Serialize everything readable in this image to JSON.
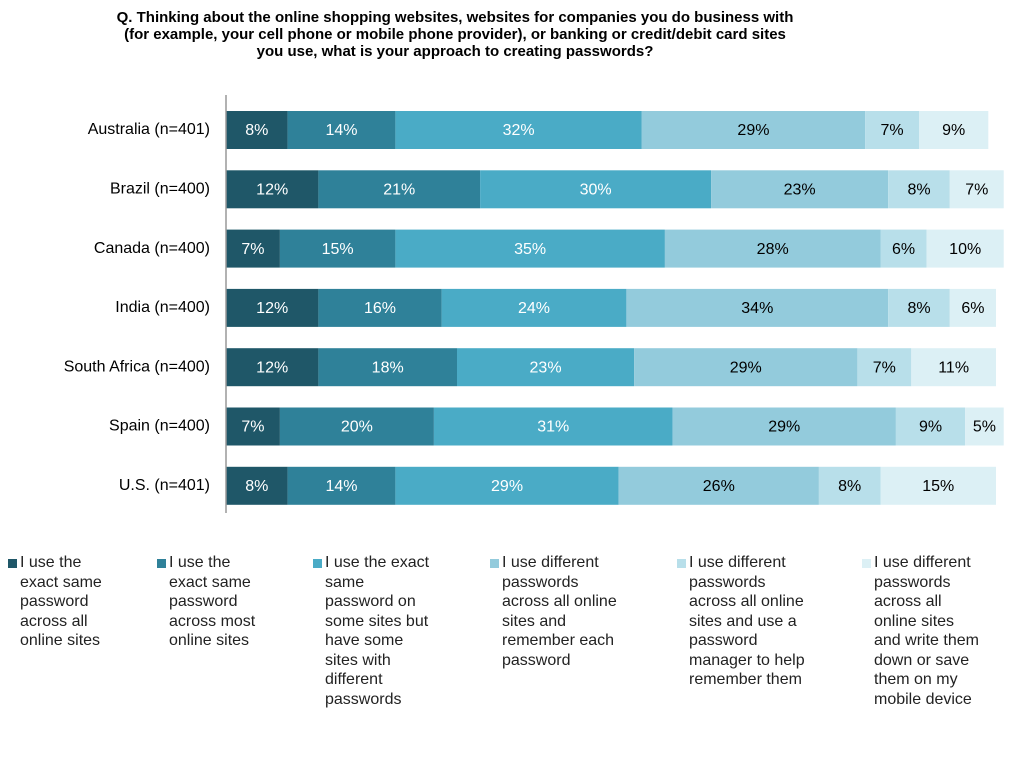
{
  "chart_data": {
    "type": "stacked-bar-horizontal",
    "title": "Q. Thinking about the online shopping websites, websites for companies you do business with (for example, your cell phone or mobile phone provider), or banking or credit/debit card sites you use, what is your approach to creating passwords?",
    "categories": [
      "Australia (n=401)",
      "Brazil (n=400)",
      "Canada (n=400)",
      "India (n=400)",
      "South Africa (n=400)",
      "Spain (n=400)",
      "U.S. (n=401)"
    ],
    "xlim": [
      0,
      100
    ],
    "series": [
      {
        "name": "I use the exact same password across all online sites",
        "color": "#1f5768",
        "label_color": "#ffffff",
        "values": [
          8,
          12,
          7,
          12,
          12,
          7,
          8
        ],
        "value_labels": [
          "8%",
          "12%",
          "7%",
          "12%",
          "12%",
          "7%",
          "8%"
        ]
      },
      {
        "name": "I use the exact same password across most online sites",
        "color": "#2f8199",
        "label_color": "#ffffff",
        "values": [
          14,
          21,
          15,
          16,
          18,
          20,
          14
        ],
        "value_labels": [
          "14%",
          "21%",
          "15%",
          "16%",
          "18%",
          "20%",
          "14%"
        ]
      },
      {
        "name": "I use the exact same password on some sites but have some sites with different passwords",
        "color": "#4aabc6",
        "label_color": "#ffffff",
        "values": [
          32,
          30,
          35,
          24,
          23,
          31,
          29
        ],
        "value_labels": [
          "32%",
          "30%",
          "35%",
          "24%",
          "23%",
          "31%",
          "29%"
        ]
      },
      {
        "name": "I use different passwords across all online sites and remember each password",
        "color": "#93cbdc",
        "label_color": "#000000",
        "values": [
          29,
          23,
          28,
          34,
          29,
          29,
          26
        ],
        "value_labels": [
          "29%",
          "23%",
          "28%",
          "34%",
          "29%",
          "29%",
          "26%"
        ]
      },
      {
        "name": "I use different passwords across all online sites and use a password manager to help remember them",
        "color": "#b8dfea",
        "label_color": "#000000",
        "values": [
          7,
          8,
          6,
          8,
          7,
          9,
          8
        ],
        "value_labels": [
          "7%",
          "8%",
          "6%",
          "8%",
          "7%",
          "9%",
          "8%"
        ]
      },
      {
        "name": "I use different passwords across all online sites and write them down or save them on my mobile device",
        "color": "#dcf0f5",
        "label_color": "#000000",
        "values": [
          9,
          7,
          10,
          6,
          11,
          5,
          15
        ],
        "value_labels": [
          "9%",
          "7%",
          "10%",
          "6%",
          "11%",
          "5%",
          "15%"
        ]
      }
    ]
  }
}
